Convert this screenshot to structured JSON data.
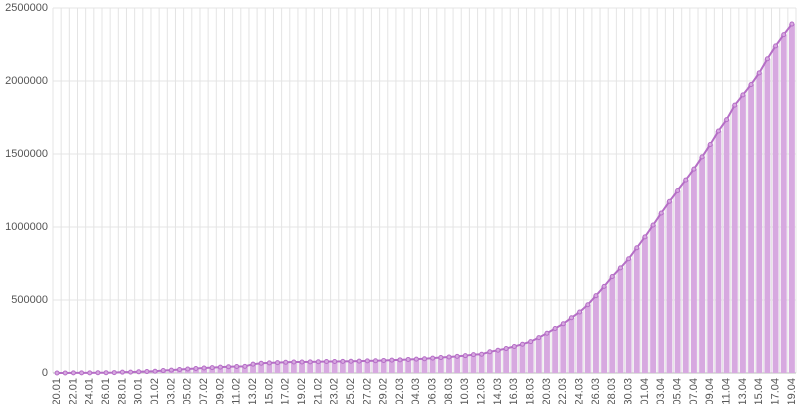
{
  "chart_data": {
    "type": "bar",
    "categories": [
      "20.01",
      null,
      "22.01",
      null,
      "24.01",
      null,
      "26.01",
      null,
      "28.01",
      null,
      "30.01",
      null,
      "01.02",
      null,
      "03.02",
      null,
      "05.02",
      null,
      "07.02",
      null,
      "09.02",
      null,
      "11.02",
      null,
      "13.02",
      null,
      "15.02",
      null,
      "17.02",
      null,
      "19.02",
      null,
      "21.02",
      null,
      "23.02",
      null,
      "25.02",
      null,
      "27.02",
      null,
      "29.02",
      null,
      "02.03",
      null,
      "04.03",
      null,
      "06.03",
      null,
      "08.03",
      null,
      "10.03",
      null,
      "12.03",
      null,
      "14.03",
      null,
      "16.03",
      null,
      "18.03",
      null,
      "20.03",
      null,
      "22.03",
      null,
      "24.03",
      null,
      "26.03",
      null,
      "28.03",
      null,
      "30.03",
      null,
      "01.04",
      null,
      "03.04",
      null,
      "05.04",
      null,
      "07.04",
      null,
      "09.04",
      null,
      "11.04",
      null,
      "13.04",
      null,
      "15.04",
      null,
      "17.04",
      null,
      "19.04"
    ],
    "series": [
      {
        "color": "#b56ec6",
        "values": [
          282,
          314,
          555,
          654,
          941,
          1434,
          2118,
          2927,
          5578,
          6166,
          8234,
          9927,
          12038,
          16787,
          19881,
          23892,
          27635,
          30794,
          34391,
          37120,
          40150,
          42762,
          44802,
          45221,
          60368,
          66885,
          69030,
          71224,
          73258,
          75136,
          75639,
          76197,
          76819,
          78572,
          78958,
          79561,
          80406,
          81388,
          82746,
          84112,
          86011,
          88369,
          90306,
          92840,
          95120,
          97886,
          101801,
          105847,
          109821,
          113590,
          118620,
          125875,
          128352,
          145205,
          156101,
          167454,
          181574,
          197102,
          214821,
          242570,
          272208,
          304507,
          336953,
          378235,
          418045,
          467653,
          529591,
          593291,
          660706,
          720117,
          782365,
          857487,
          932605,
          1013466,
          1095917,
          1176060,
          1249754,
          1321481,
          1396476,
          1480202,
          1565278,
          1657526,
          1735650,
          1834721,
          1904838,
          1976191,
          2056054,
          2152437,
          2240190,
          2317758,
          2390000
        ]
      }
    ],
    "bar_color": "#d7a9e0",
    "ylim": [
      0,
      2500000
    ],
    "yticks": [
      0,
      500000,
      1000000,
      1500000,
      2000000,
      2500000
    ],
    "grid": true
  }
}
